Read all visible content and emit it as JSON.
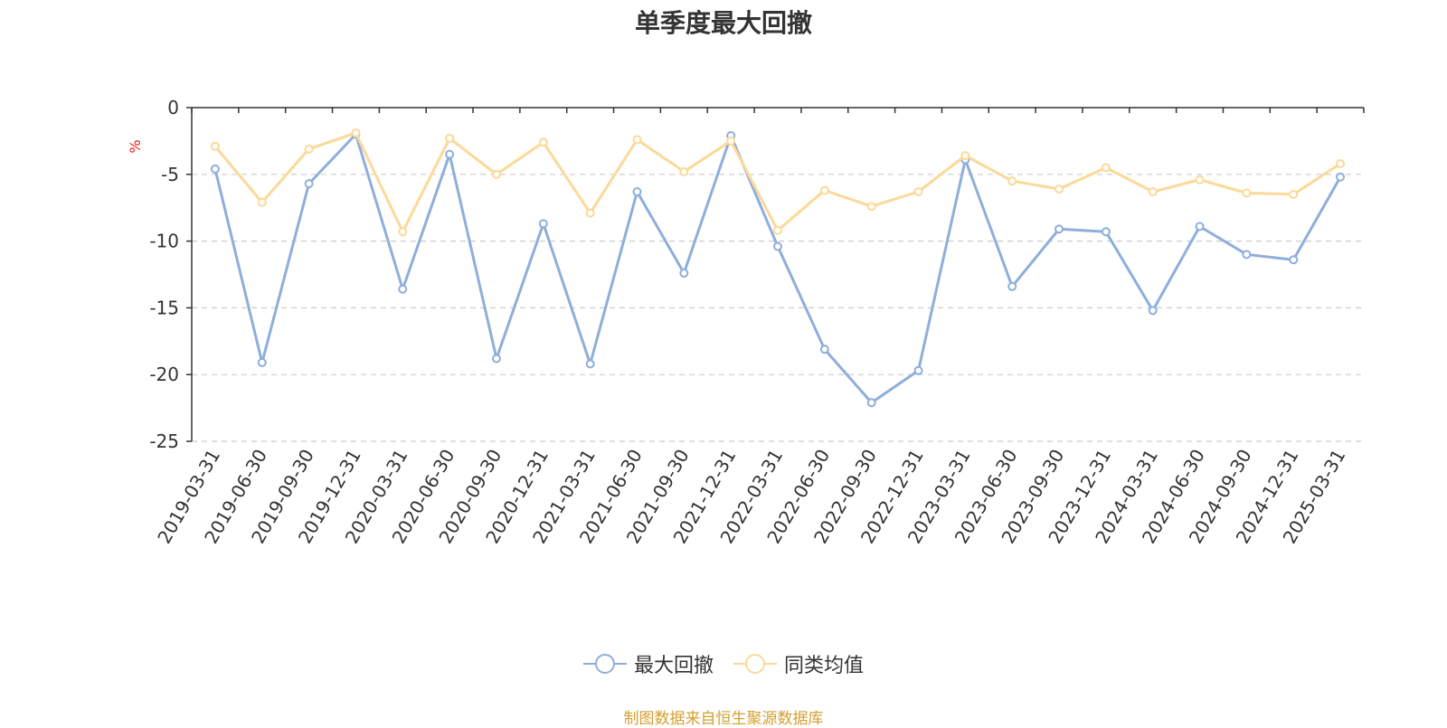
{
  "chart_data": {
    "type": "line",
    "title": "单季度最大回撤",
    "ylabel": "%",
    "ylim": [
      -25,
      0
    ],
    "yticks": [
      0,
      -5,
      -10,
      -15,
      -20,
      -25
    ],
    "grid": true,
    "legend_position": "bottom",
    "categories": [
      "2019-03-31",
      "2019-06-30",
      "2019-09-30",
      "2019-12-31",
      "2020-03-31",
      "2020-06-30",
      "2020-09-30",
      "2020-12-31",
      "2021-03-31",
      "2021-06-30",
      "2021-09-30",
      "2021-12-31",
      "2022-03-31",
      "2022-06-30",
      "2022-09-30",
      "2022-12-31",
      "2023-03-31",
      "2023-06-30",
      "2023-09-30",
      "2023-12-31",
      "2024-03-31",
      "2024-06-30",
      "2024-09-30",
      "2024-12-31",
      "2025-03-31"
    ],
    "series": [
      {
        "name": "最大回撤",
        "color": "#8eaedb",
        "values": [
          -4.6,
          -19.1,
          -5.7,
          -2.0,
          -13.6,
          -3.5,
          -18.8,
          -8.7,
          -19.2,
          -6.3,
          -12.4,
          -2.1,
          -10.4,
          -18.1,
          -22.1,
          -19.7,
          -3.9,
          -13.4,
          -9.1,
          -9.3,
          -15.2,
          -8.9,
          -11.0,
          -11.4,
          -5.2
        ]
      },
      {
        "name": "同类均值",
        "color": "#fbd998",
        "values": [
          -2.9,
          -7.1,
          -3.1,
          -1.9,
          -9.3,
          -2.3,
          -5.0,
          -2.6,
          -7.9,
          -2.4,
          -4.8,
          -2.5,
          -9.2,
          -6.2,
          -7.4,
          -6.3,
          -3.6,
          -5.5,
          -6.1,
          -4.5,
          -6.3,
          -5.4,
          -6.4,
          -6.5,
          -4.2
        ]
      }
    ]
  },
  "footer": {
    "source": "制图数据来自恒生聚源数据库"
  },
  "colors": {
    "axis": "#333333",
    "grid": "#cccccc",
    "unit": "#e01f1f",
    "source": "#d4a030"
  }
}
